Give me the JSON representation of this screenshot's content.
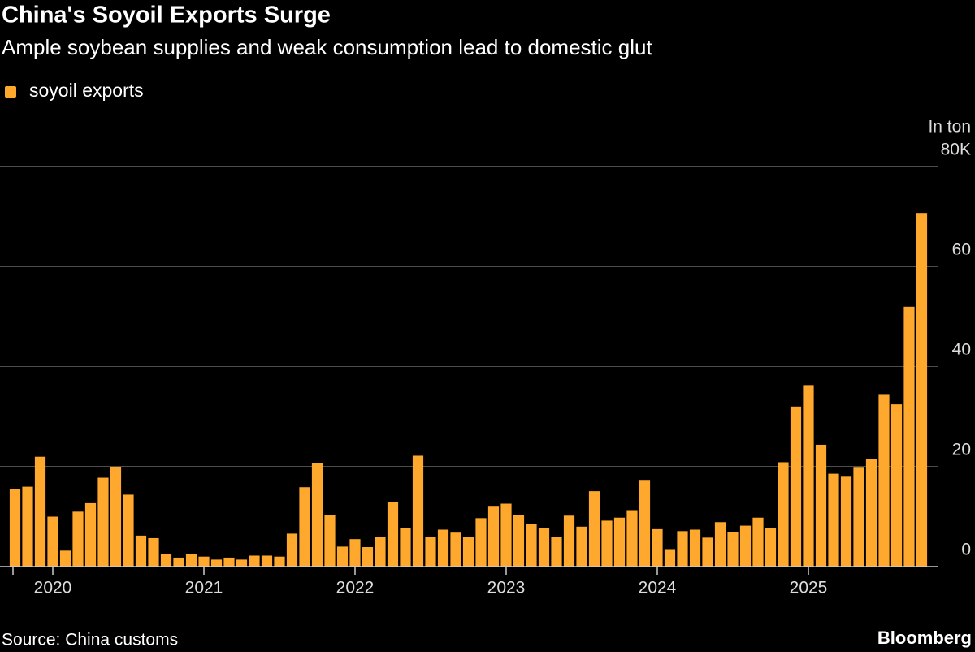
{
  "chart_data": {
    "type": "bar",
    "title": "China's Soyoil Exports Surge",
    "subtitle": "Ample soybean supplies and weak consumption lead to domestic glut",
    "source": "Source: China customs",
    "brand": "Bloomberg",
    "y_unit": "In ton",
    "categories": [
      null,
      null,
      null,
      "2020",
      null,
      null,
      null,
      null,
      null,
      null,
      null,
      null,
      null,
      null,
      null,
      "2021",
      null,
      null,
      null,
      null,
      null,
      null,
      null,
      null,
      null,
      null,
      null,
      "2022",
      null,
      null,
      null,
      null,
      null,
      null,
      null,
      null,
      null,
      null,
      null,
      "2023",
      null,
      null,
      null,
      null,
      null,
      null,
      null,
      null,
      null,
      null,
      null,
      "2024",
      null,
      null,
      null,
      null,
      null,
      null,
      null,
      null,
      null,
      null,
      null,
      "2025",
      null,
      null,
      null,
      null,
      null,
      null,
      null,
      null,
      null
    ],
    "series": [
      {
        "name": "soyoil exports",
        "color": "#ffa82e",
        "values": [
          15.5,
          16,
          22,
          10,
          3.2,
          11,
          12.7,
          17.8,
          20,
          14.4,
          6.2,
          5.7,
          2.5,
          1.8,
          2.6,
          2,
          1.4,
          1.8,
          1.4,
          2.2,
          2.2,
          2,
          6.6,
          15.9,
          20.8,
          10.3,
          4,
          5.5,
          3.9,
          6,
          13,
          7.8,
          22.2,
          6,
          7.4,
          6.8,
          6,
          9.7,
          12,
          12.6,
          10.4,
          8.5,
          7.7,
          6,
          10.2,
          8,
          15.1,
          9.2,
          9.8,
          11.3,
          17.2,
          7.5,
          3.5,
          7.1,
          7.4,
          5.8,
          8.9,
          6.9,
          8.2,
          9.8,
          7.8,
          20.9,
          31.9,
          36.2,
          24.4,
          18.6,
          18,
          19.8,
          21.6,
          34.4,
          32.5,
          51.9,
          70.7
        ]
      }
    ],
    "ylim": [
      0,
      80
    ],
    "yticks": [
      0,
      20,
      40,
      60,
      {
        "value": 80,
        "label": "80K"
      }
    ],
    "grid": true,
    "legend": "top-left"
  }
}
